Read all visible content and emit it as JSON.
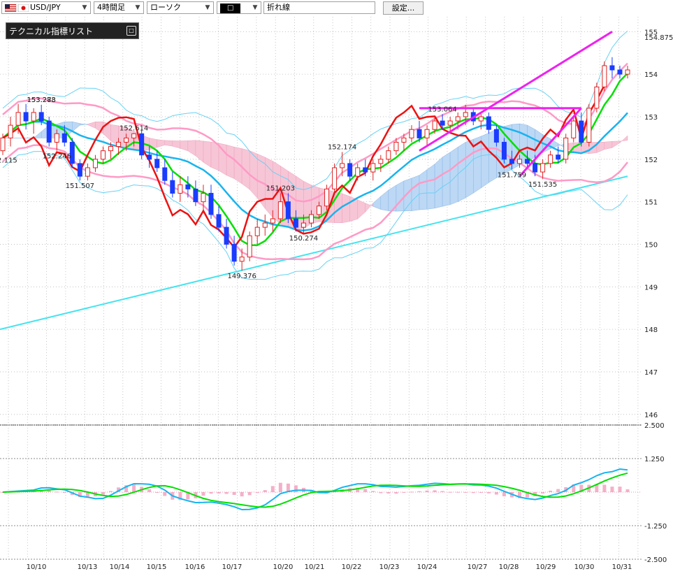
{
  "toolbar": {
    "pair": "USD/JPY",
    "timeframe": "4時間足",
    "chart_style": "ローソク",
    "color_value": "□",
    "line_type": "折れ線",
    "settings_label": "設定..."
  },
  "indicator_panel": {
    "label": "テクニカル指標リスト",
    "toggle": "□"
  },
  "colors": {
    "bull": "#e02020",
    "bear": "#1a3cff",
    "ma_short": "#00e000",
    "bb_mid": "#18b4ef",
    "bb_inner": "#ff9ac6",
    "bb_outer": "#66d2f5",
    "trend_line": "#44e4f0",
    "red_line": "#ee1111",
    "magenta": "#ee22ee",
    "cloud_blue": "#bcd8f5",
    "cloud_pink": "#f6c6d6"
  },
  "chart_data": {
    "type": "line",
    "price_axis": {
      "ticks": [
        "155",
        "154",
        "153",
        "152",
        "151",
        "150",
        "149",
        "148",
        "147",
        "146"
      ],
      "current_price": "154.875",
      "ylim": [
        145.75,
        155.35
      ]
    },
    "osc_axis": {
      "ticks": [
        "2.500",
        "1.250",
        "-1.250",
        "-2.500"
      ],
      "ylim": [
        -2.5,
        2.5
      ]
    },
    "x_labels": [
      "10/10",
      "10/13",
      "10/14",
      "10/15",
      "10/16",
      "10/17",
      "10/20",
      "10/21",
      "10/22",
      "10/23",
      "10/24",
      "10/27",
      "10/28",
      "10/29",
      "10/30",
      "10/31"
    ],
    "price_labels": [
      "153.278",
      "152.115",
      "151.507",
      "152.614",
      "151.203",
      "150.274",
      "149.376",
      "152.174",
      "153.064",
      "152.246",
      "153.283",
      "151.759",
      "151.535"
    ],
    "candles": [
      [
        152.2,
        152.6,
        152.1,
        152.5
      ],
      [
        152.5,
        153.0,
        152.3,
        152.8
      ],
      [
        152.8,
        153.3,
        152.6,
        153.1
      ],
      [
        153.1,
        153.3,
        152.7,
        152.9
      ],
      [
        152.9,
        153.2,
        152.6,
        153.1
      ],
      [
        153.1,
        153.28,
        152.8,
        152.9
      ],
      [
        152.9,
        153.0,
        152.3,
        152.4
      ],
      [
        152.4,
        152.7,
        152.2,
        152.6
      ],
      [
        152.6,
        152.8,
        152.3,
        152.4
      ],
      [
        152.4,
        152.5,
        151.8,
        151.9
      ],
      [
        151.9,
        152.0,
        151.5,
        151.6
      ],
      [
        151.6,
        151.9,
        151.5,
        151.8
      ],
      [
        151.8,
        152.1,
        151.7,
        152.0
      ],
      [
        152.0,
        152.3,
        151.9,
        152.2
      ],
      [
        152.2,
        152.4,
        152.0,
        152.3
      ],
      [
        152.3,
        152.5,
        152.1,
        152.4
      ],
      [
        152.4,
        152.6,
        152.2,
        152.5
      ],
      [
        152.5,
        152.61,
        152.3,
        152.6
      ],
      [
        152.6,
        152.7,
        152.0,
        152.1
      ],
      [
        152.1,
        152.3,
        151.8,
        152.0
      ],
      [
        152.0,
        152.2,
        151.7,
        151.8
      ],
      [
        151.8,
        152.0,
        151.4,
        151.5
      ],
      [
        151.5,
        151.7,
        151.1,
        151.2
      ],
      [
        151.2,
        151.6,
        151.0,
        151.4
      ],
      [
        151.4,
        151.6,
        151.1,
        151.3
      ],
      [
        151.3,
        151.5,
        150.9,
        151.0
      ],
      [
        151.0,
        151.4,
        150.8,
        151.2
      ],
      [
        151.2,
        151.4,
        150.6,
        150.7
      ],
      [
        150.7,
        150.9,
        150.3,
        150.4
      ],
      [
        150.4,
        150.6,
        149.9,
        150.0
      ],
      [
        150.0,
        150.2,
        149.5,
        149.6
      ],
      [
        149.6,
        149.9,
        149.38,
        149.7
      ],
      [
        149.7,
        150.3,
        149.6,
        150.2
      ],
      [
        150.2,
        150.6,
        150.0,
        150.4
      ],
      [
        150.4,
        150.7,
        150.2,
        150.5
      ],
      [
        150.5,
        150.8,
        150.3,
        150.6
      ],
      [
        150.6,
        151.2,
        150.5,
        151.0
      ],
      [
        151.0,
        151.2,
        150.5,
        150.6
      ],
      [
        150.6,
        150.8,
        150.3,
        150.4
      ],
      [
        150.4,
        150.7,
        150.27,
        150.5
      ],
      [
        150.5,
        150.8,
        150.4,
        150.7
      ],
      [
        150.7,
        151.0,
        150.6,
        150.9
      ],
      [
        150.9,
        151.4,
        150.8,
        151.3
      ],
      [
        151.3,
        151.9,
        151.2,
        151.8
      ],
      [
        151.8,
        152.17,
        151.6,
        151.9
      ],
      [
        151.9,
        152.0,
        151.5,
        151.6
      ],
      [
        151.6,
        151.9,
        151.5,
        151.8
      ],
      [
        151.8,
        152.0,
        151.6,
        151.7
      ],
      [
        151.7,
        152.0,
        151.5,
        151.9
      ],
      [
        151.9,
        152.1,
        151.7,
        152.0
      ],
      [
        152.0,
        152.3,
        151.9,
        152.2
      ],
      [
        152.2,
        152.5,
        152.1,
        152.4
      ],
      [
        152.4,
        152.6,
        152.2,
        152.5
      ],
      [
        152.5,
        152.8,
        152.4,
        152.7
      ],
      [
        152.7,
        152.9,
        152.4,
        152.5
      ],
      [
        152.5,
        152.8,
        152.3,
        152.7
      ],
      [
        152.7,
        153.0,
        152.6,
        152.9
      ],
      [
        152.9,
        153.06,
        152.7,
        152.8
      ],
      [
        152.8,
        153.0,
        152.6,
        152.9
      ],
      [
        152.9,
        153.1,
        152.7,
        153.0
      ],
      [
        153.0,
        153.28,
        152.8,
        153.1
      ],
      [
        153.1,
        153.2,
        152.8,
        152.9
      ],
      [
        152.9,
        153.1,
        152.7,
        153.0
      ],
      [
        153.0,
        153.1,
        152.6,
        152.7
      ],
      [
        152.7,
        152.8,
        152.3,
        152.4
      ],
      [
        152.4,
        152.5,
        151.9,
        152.0
      ],
      [
        152.0,
        152.2,
        151.76,
        151.9
      ],
      [
        151.9,
        152.1,
        151.8,
        152.0
      ],
      [
        152.0,
        152.2,
        151.8,
        151.9
      ],
      [
        151.9,
        152.1,
        151.6,
        151.7
      ],
      [
        151.7,
        152.0,
        151.54,
        151.9
      ],
      [
        151.9,
        152.2,
        151.8,
        152.1
      ],
      [
        152.1,
        152.3,
        151.9,
        152.0
      ],
      [
        152.0,
        152.6,
        151.9,
        152.5
      ],
      [
        152.5,
        153.0,
        152.4,
        152.9
      ],
      [
        152.9,
        153.1,
        152.3,
        152.4
      ],
      [
        152.4,
        153.3,
        152.3,
        153.2
      ],
      [
        153.2,
        153.8,
        153.1,
        153.7
      ],
      [
        153.7,
        154.3,
        153.6,
        154.2
      ],
      [
        154.2,
        154.4,
        153.9,
        154.1
      ],
      [
        154.1,
        154.2,
        153.9,
        154.0
      ],
      [
        154.0,
        154.2,
        153.9,
        154.1
      ]
    ]
  }
}
